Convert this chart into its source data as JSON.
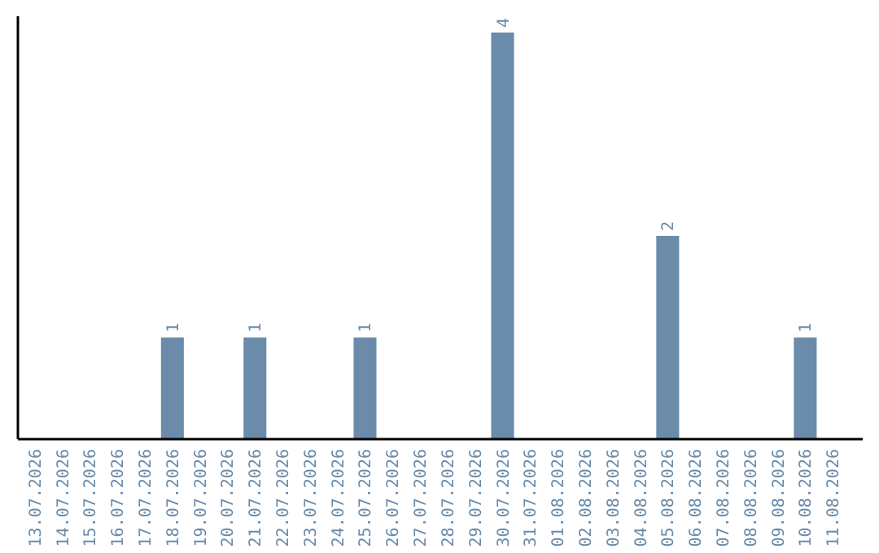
{
  "chart_data": {
    "type": "bar",
    "categories": [
      "13.07.2026",
      "14.07.2026",
      "15.07.2026",
      "16.07.2026",
      "17.07.2026",
      "18.07.2026",
      "19.07.2026",
      "20.07.2026",
      "21.07.2026",
      "22.07.2026",
      "23.07.2026",
      "24.07.2026",
      "25.07.2026",
      "26.07.2026",
      "27.07.2026",
      "28.07.2026",
      "29.07.2026",
      "30.07.2026",
      "31.07.2026",
      "01.08.2026",
      "02.08.2026",
      "03.08.2026",
      "04.08.2026",
      "05.08.2026",
      "06.08.2026",
      "07.08.2026",
      "08.08.2026",
      "09.08.2026",
      "10.08.2026",
      "11.08.2026"
    ],
    "values": [
      0,
      0,
      0,
      0,
      0,
      1,
      0,
      0,
      1,
      0,
      0,
      0,
      1,
      0,
      0,
      0,
      0,
      4,
      0,
      0,
      0,
      0,
      0,
      2,
      0,
      0,
      0,
      0,
      1,
      0
    ],
    "value_labels": [
      null,
      null,
      null,
      null,
      null,
      "1",
      null,
      null,
      "1",
      null,
      null,
      null,
      "1",
      null,
      null,
      null,
      null,
      "4",
      null,
      null,
      null,
      null,
      null,
      "2",
      null,
      null,
      null,
      null,
      "1",
      null
    ],
    "color": "#6a8caa",
    "grid": false
  }
}
